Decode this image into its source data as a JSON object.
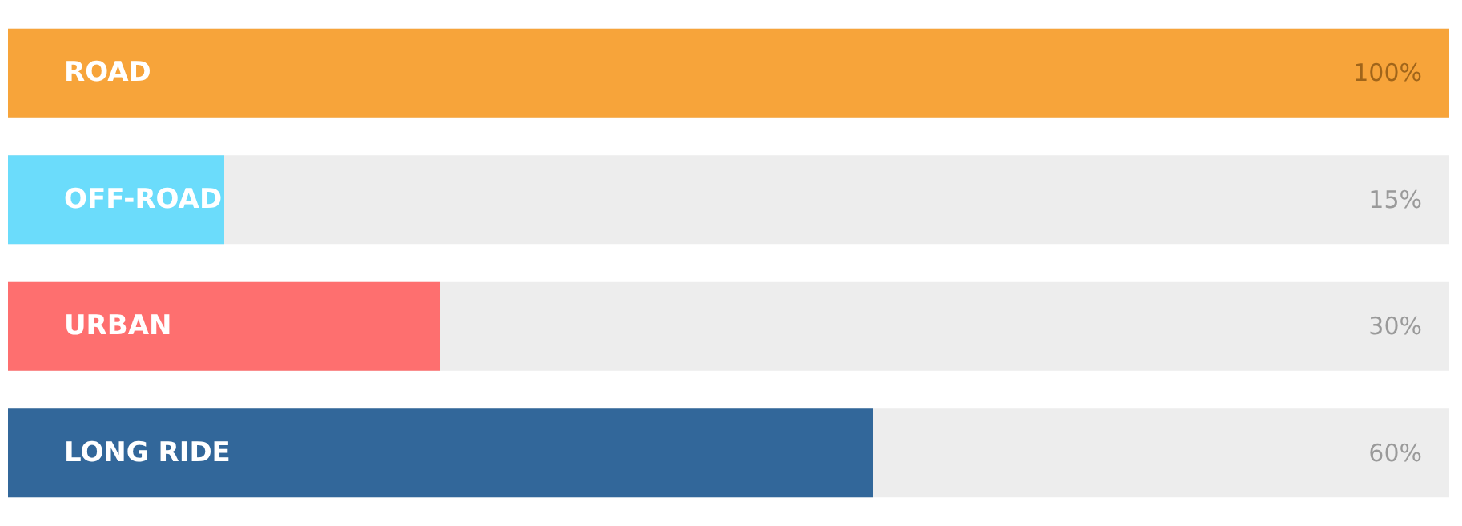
{
  "chart_data": {
    "type": "bar",
    "orientation": "horizontal",
    "categories": [
      "ROAD",
      "OFF-ROAD",
      "URBAN",
      "LONG RIDE"
    ],
    "values": [
      100,
      15,
      30,
      60
    ],
    "colors": [
      "#f7a43a",
      "#6bdcfb",
      "#fe6f6f",
      "#32679a"
    ],
    "value_labels": [
      "100%",
      "15%",
      "30%",
      "60%"
    ],
    "xlim": [
      0,
      100
    ],
    "tick_labels": false
  }
}
